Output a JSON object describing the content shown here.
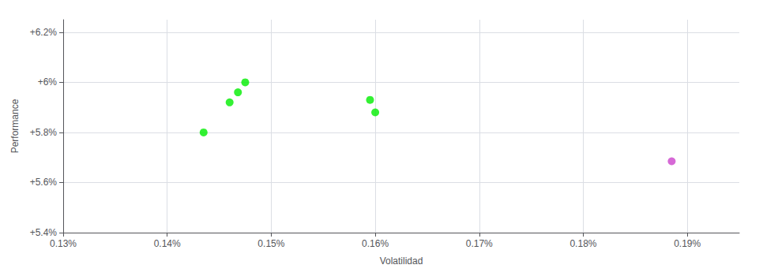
{
  "chart_data": {
    "type": "scatter",
    "xlabel": "Volatilidad",
    "ylabel": "Performance",
    "xlim": [
      0.0013,
      0.00195
    ],
    "ylim": [
      0.054,
      0.0625
    ],
    "xticks": [
      {
        "value": 0.0013,
        "label": "0.13%"
      },
      {
        "value": 0.0014,
        "label": "0.14%"
      },
      {
        "value": 0.0015,
        "label": "0.15%"
      },
      {
        "value": 0.0016,
        "label": "0.16%"
      },
      {
        "value": 0.0017,
        "label": "0.17%"
      },
      {
        "value": 0.0018,
        "label": "0.18%"
      },
      {
        "value": 0.0019,
        "label": "0.19%"
      }
    ],
    "yticks": [
      {
        "value": 0.054,
        "label": "+5.4%"
      },
      {
        "value": 0.056,
        "label": "+5.6%"
      },
      {
        "value": 0.058,
        "label": "+5.8%"
      },
      {
        "value": 0.06,
        "label": "+6%"
      },
      {
        "value": 0.062,
        "label": "+6.2%"
      }
    ],
    "grid": true,
    "series": [
      {
        "color": "#00ee00",
        "x": [
          0.001435,
          0.00146,
          0.001468,
          0.001475,
          0.001595,
          0.0016
        ],
        "values": [
          0.058,
          0.0592,
          0.0596,
          0.06,
          0.0593,
          0.0588
        ]
      },
      {
        "color": "#cc44cc",
        "x": [
          0.001885
        ],
        "values": [
          0.05685
        ]
      }
    ]
  }
}
